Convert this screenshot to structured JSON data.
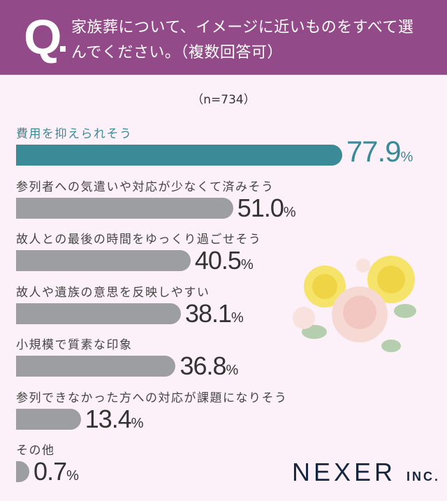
{
  "header": {
    "q": "Q",
    "question": "家族葬について、イメージに近いものをすべて選んでください。（複数回答可）"
  },
  "chart_data": {
    "type": "bar",
    "orientation": "horizontal",
    "sample_note": "（n=734）",
    "categories": [
      "費用を抑えられそう",
      "参列者への気遣いや対応が少なくて済みそう",
      "故人との最後の時間をゆっくり過ごせそう",
      "故人や遺族の意思を反映しやすい",
      "小規模で質素な印象",
      "参列できなかった方への対応が課題になりそう",
      "その他"
    ],
    "values": [
      77.9,
      51.0,
      40.5,
      38.1,
      36.8,
      13.4,
      0.7
    ],
    "value_labels": [
      "77.9",
      "51.0",
      "40.5",
      "38.1",
      "36.8",
      "13.4",
      "0.7"
    ],
    "unit": "%",
    "highlight_color": "#3b8a98",
    "bar_color": "#9d9ea2"
  },
  "logo": {
    "name": "NEXER",
    "suffix": "INC."
  }
}
